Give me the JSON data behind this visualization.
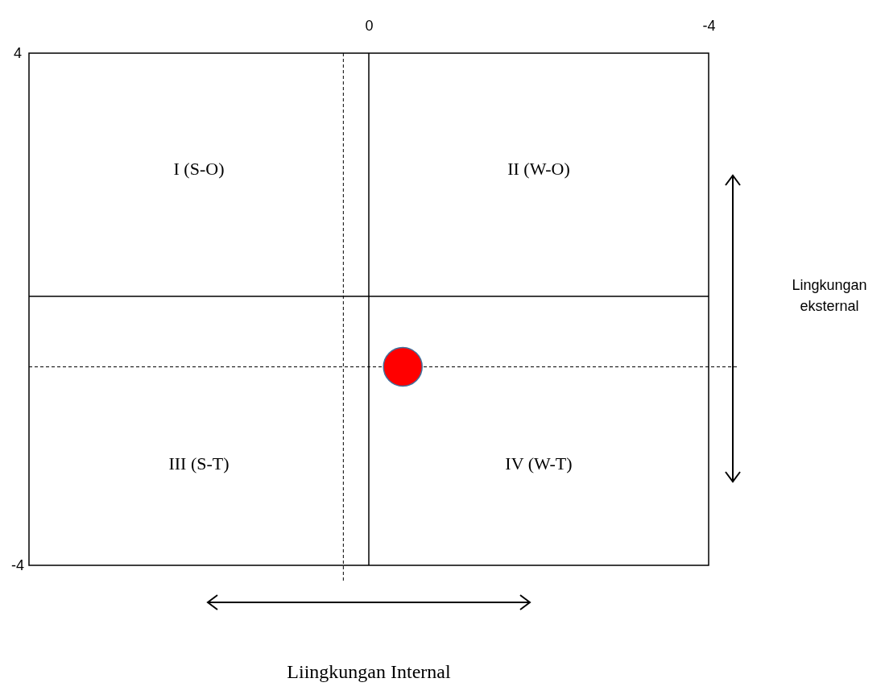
{
  "chart_data": {
    "type": "scatter",
    "x": [
      -0.4
    ],
    "values": [
      -0.9
    ],
    "color": "#ff0000",
    "marker": "circle",
    "xlim": [
      4,
      -4
    ],
    "xticks": [
      0,
      -4
    ],
    "ylim": [
      -4,
      4
    ],
    "yticks": [
      4,
      -4
    ],
    "xlabel": "Liingkungan Internal",
    "ref_lines": [
      {
        "axis": "x",
        "value": 0.3,
        "line_style": "dashed"
      },
      {
        "axis": "y",
        "value": -0.9,
        "line_style": "dashed"
      },
      {
        "axis": "x",
        "value": 0,
        "line_style": "solid"
      },
      {
        "axis": "y",
        "value": 0.2,
        "line_style": "solid"
      }
    ],
    "annotations": [
      "I (S-O)",
      "II (W-O)",
      "III (S-T)",
      "IV (W-T)",
      "Lingkungan eksternal"
    ]
  }
}
